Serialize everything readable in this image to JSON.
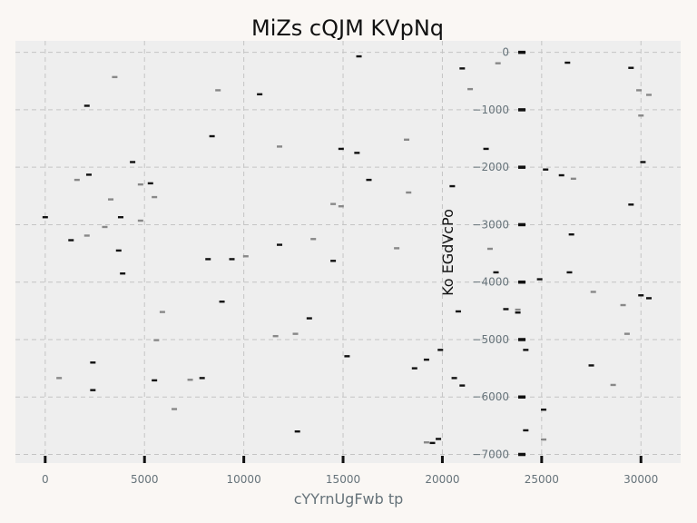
{
  "chart_data": {
    "type": "scatter",
    "title": "MiZs cQJM KVpNq",
    "xlabel": "cYYrnUgFwb  tp",
    "ylabel": "Ko EGdVcPo",
    "xlim": [
      -1500,
      32000
    ],
    "ylim": [
      -7150,
      200
    ],
    "xticks": [
      0,
      5000,
      10000,
      15000,
      20000,
      25000,
      30000
    ],
    "yticks": [
      0,
      -1000,
      -2000,
      -3000,
      -4000,
      -5000,
      -6000,
      -7000
    ],
    "grid": true,
    "background": "#eeeeee",
    "marker": "tick",
    "series": [
      {
        "color": "#111111",
        "points": [
          [
            0,
            -2870
          ],
          [
            1300,
            -3270
          ],
          [
            2100,
            -930
          ],
          [
            2200,
            -2130
          ],
          [
            2400,
            -5400
          ],
          [
            2400,
            -5880
          ],
          [
            3700,
            -3450
          ],
          [
            3800,
            -2870
          ],
          [
            3900,
            -3850
          ],
          [
            4400,
            -1910
          ],
          [
            5300,
            -2280
          ],
          [
            5500,
            -5710
          ],
          [
            7900,
            -5670
          ],
          [
            8200,
            -3600
          ],
          [
            8400,
            -1460
          ],
          [
            8900,
            -4340
          ],
          [
            9400,
            -3600
          ],
          [
            10800,
            -730
          ],
          [
            11800,
            -3350
          ],
          [
            12700,
            -6600
          ],
          [
            13300,
            -4630
          ],
          [
            14500,
            -3630
          ],
          [
            14900,
            -1680
          ],
          [
            15200,
            -5290
          ],
          [
            15700,
            -1750
          ],
          [
            15800,
            -70
          ],
          [
            16300,
            -2220
          ],
          [
            18600,
            -5500
          ],
          [
            19200,
            -5350
          ],
          [
            19500,
            -6800
          ],
          [
            19800,
            -6730
          ],
          [
            19900,
            -5180
          ],
          [
            20500,
            -2330
          ],
          [
            20600,
            -5670
          ],
          [
            20800,
            -4510
          ],
          [
            21000,
            -5800
          ],
          [
            21000,
            -280
          ],
          [
            22200,
            -1680
          ],
          [
            22700,
            -3830
          ],
          [
            23200,
            -4470
          ],
          [
            23800,
            -4530
          ],
          [
            24200,
            -5180
          ],
          [
            24200,
            -6580
          ],
          [
            24900,
            -3950
          ],
          [
            25100,
            -6220
          ],
          [
            25200,
            -2040
          ],
          [
            26000,
            -2140
          ],
          [
            26300,
            -180
          ],
          [
            26400,
            -3830
          ],
          [
            26500,
            -3170
          ],
          [
            27500,
            -5450
          ],
          [
            29500,
            -270
          ],
          [
            29500,
            -2650
          ],
          [
            30000,
            -4230
          ],
          [
            30100,
            -1910
          ],
          [
            30400,
            -4280
          ]
        ]
      },
      {
        "color": "#888888",
        "points": [
          [
            700,
            -5670
          ],
          [
            1600,
            -2220
          ],
          [
            2100,
            -3190
          ],
          [
            3000,
            -3040
          ],
          [
            3300,
            -2560
          ],
          [
            3500,
            -430
          ],
          [
            4800,
            -2930
          ],
          [
            4800,
            -2300
          ],
          [
            5500,
            -2520
          ],
          [
            5600,
            -5010
          ],
          [
            5900,
            -4520
          ],
          [
            6500,
            -6210
          ],
          [
            7300,
            -5700
          ],
          [
            8700,
            -660
          ],
          [
            10100,
            -3550
          ],
          [
            11600,
            -4940
          ],
          [
            11800,
            -1640
          ],
          [
            12600,
            -4900
          ],
          [
            13500,
            -3250
          ],
          [
            14500,
            -2640
          ],
          [
            14900,
            -2680
          ],
          [
            17700,
            -3410
          ],
          [
            18200,
            -1520
          ],
          [
            18300,
            -2440
          ],
          [
            19200,
            -6790
          ],
          [
            20400,
            -3250
          ],
          [
            21400,
            -640
          ],
          [
            22400,
            -3420
          ],
          [
            22800,
            -190
          ],
          [
            23800,
            -4480
          ],
          [
            25100,
            -6740
          ],
          [
            26600,
            -2200
          ],
          [
            27600,
            -4170
          ],
          [
            28600,
            -5790
          ],
          [
            29100,
            -4400
          ],
          [
            29300,
            -4900
          ],
          [
            29900,
            -660
          ],
          [
            30000,
            -1100
          ],
          [
            30400,
            -740
          ]
        ]
      }
    ],
    "axis_ticks": [
      0,
      -1000,
      -2000,
      -3000,
      -4000,
      -5000,
      -6000,
      -7000
    ],
    "bottom_ticks": [
      0,
      5000,
      10000,
      15000,
      20000,
      25000,
      30000
    ]
  }
}
